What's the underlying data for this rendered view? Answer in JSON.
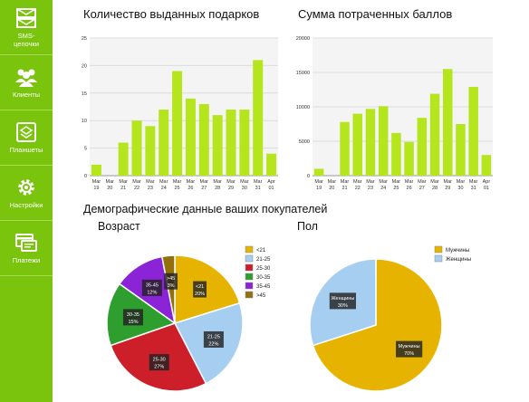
{
  "sidebar": {
    "items": [
      {
        "label": "SMS-\nцепочки",
        "label_line1": "SMS-",
        "label_line2": "цепочки",
        "icon": "envelope-icon"
      },
      {
        "label": "Клиенты",
        "icon": "users-icon"
      },
      {
        "label": "Планшеты",
        "icon": "tablet-icon"
      },
      {
        "label": "Настройки",
        "icon": "gear-icon"
      },
      {
        "label": "Платежи",
        "icon": "payments-icon"
      }
    ],
    "color": "#7bc40d"
  },
  "charts_section": {
    "title_gifts": "Количество выданных подарков",
    "title_points": "Сумма потраченных баллов",
    "demographics_title": "Демографические данные ваших покупателей",
    "age_title": "Возраст",
    "gender_title": "Пол"
  },
  "chart_data": [
    {
      "type": "bar",
      "categories": [
        "Mar 19",
        "Mar 20",
        "Mar 21",
        "Mar 22",
        "Mar 23",
        "Mar 24",
        "Mar 25",
        "Mar 26",
        "Mar 27",
        "Mar 28",
        "Mar 29",
        "Mar 30",
        "Mar 31",
        "Apr 01"
      ],
      "values": [
        2,
        0,
        6,
        10,
        9,
        12,
        19,
        14,
        13,
        11,
        12,
        12,
        21,
        4
      ],
      "ylim": [
        0,
        25
      ],
      "yticks": [
        0,
        5,
        10,
        15,
        20,
        25
      ],
      "color": "#b5e61d"
    },
    {
      "type": "bar",
      "categories": [
        "Mar 19",
        "Mar 20",
        "Mar 21",
        "Mar 22",
        "Mar 23",
        "Mar 24",
        "Mar 25",
        "Mar 26",
        "Mar 27",
        "Mar 28",
        "Mar 29",
        "Mar 30",
        "Mar 31",
        "Apr 01"
      ],
      "values": [
        1000,
        0,
        7800,
        9000,
        9700,
        10100,
        6200,
        4900,
        8400,
        11900,
        15500,
        7500,
        12900,
        3000
      ],
      "ylim": [
        0,
        20000
      ],
      "yticks": [
        0,
        5000,
        10000,
        15000,
        20000
      ],
      "color": "#b5e61d"
    },
    {
      "type": "pie",
      "labels": [
        "<21",
        "21-25",
        "25-30",
        "30-35",
        "35-45",
        ">45"
      ],
      "values": [
        20,
        22,
        27,
        15,
        12,
        3
      ],
      "colors": [
        "#e6b400",
        "#a6cef0",
        "#cc1f2a",
        "#2e9e2e",
        "#8a24d6",
        "#94700a"
      ],
      "legend_position": "top-right"
    },
    {
      "type": "pie",
      "labels": [
        "Мужчины",
        "Женщины"
      ],
      "values": [
        70,
        30
      ],
      "colors": [
        "#e6b400",
        "#a6cef0"
      ],
      "legend_position": "top-right"
    }
  ]
}
